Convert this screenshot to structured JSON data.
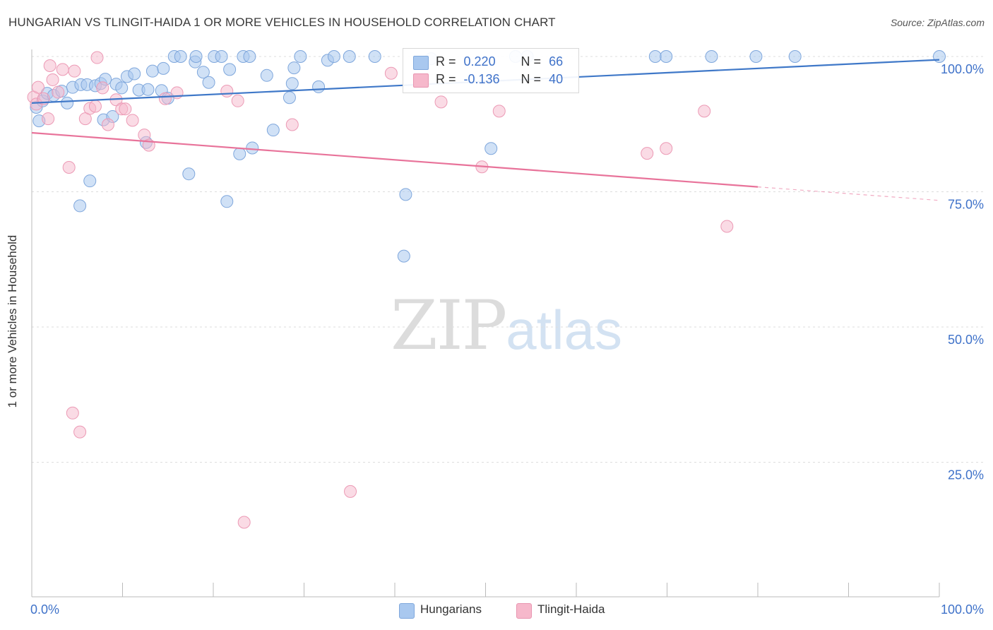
{
  "header": {
    "title": "HUNGARIAN VS TLINGIT-HAIDA 1 OR MORE VEHICLES IN HOUSEHOLD CORRELATION CHART",
    "source": "Source: ZipAtlas.com"
  },
  "watermark": {
    "zip": "ZIP",
    "atlas": "atlas"
  },
  "stats": [
    {
      "r_label": "R =",
      "r_value": "0.220",
      "n_label": "N =",
      "n_value": "66",
      "color": "#a9c8ef"
    },
    {
      "r_label": "R =",
      "r_value": "-0.136",
      "n_label": "N =",
      "n_value": "40",
      "color": "#f6b8cb"
    }
  ],
  "legend": [
    {
      "label": "Hungarians",
      "color": "#a9c8ef"
    },
    {
      "label": "Tlingit-Haida",
      "color": "#f6b8cb"
    }
  ],
  "chart_data": {
    "type": "scatter",
    "title": "HUNGARIAN VS TLINGIT-HAIDA 1 OR MORE VEHICLES IN HOUSEHOLD CORRELATION CHART",
    "xlabel": "",
    "ylabel": "1 or more Vehicles in Household",
    "xlim": [
      0,
      100
    ],
    "ylim": [
      0,
      102
    ],
    "x_tick_labels": [
      "0.0%",
      "100.0%"
    ],
    "y_ticks": [
      25,
      50,
      75,
      100
    ],
    "y_tick_labels": [
      "25.0%",
      "50.0%",
      "75.0%",
      "100.0%"
    ],
    "grid": "horizontal dashed",
    "legend_position": "bottom-center",
    "colors": {
      "Hungarians": "#3f78c8",
      "Tlingit-Haida": "#e8739a"
    },
    "series": [
      {
        "name": "Hungarians",
        "trend": {
          "x": [
            0,
            100
          ],
          "y": [
            91.4,
            99.4
          ]
        },
        "points": [
          [
            0.5,
            90.6
          ],
          [
            0.8,
            88.1
          ],
          [
            1.2,
            91.8
          ],
          [
            1.7,
            93.2
          ],
          [
            2.4,
            92.8
          ],
          [
            3.3,
            93.6
          ],
          [
            3.9,
            91.4
          ],
          [
            4.5,
            94.3
          ],
          [
            5.4,
            94.8
          ],
          [
            6.1,
            94.8
          ],
          [
            6.4,
            77.0
          ],
          [
            5.3,
            72.4
          ],
          [
            7.0,
            94.6
          ],
          [
            7.6,
            95.0
          ],
          [
            8.1,
            95.8
          ],
          [
            7.9,
            88.3
          ],
          [
            8.9,
            88.9
          ],
          [
            9.3,
            94.9
          ],
          [
            9.9,
            94.2
          ],
          [
            10.5,
            96.3
          ],
          [
            11.3,
            96.8
          ],
          [
            11.8,
            93.8
          ],
          [
            12.6,
            84.1
          ],
          [
            12.8,
            93.9
          ],
          [
            13.3,
            97.3
          ],
          [
            14.3,
            93.7
          ],
          [
            14.5,
            97.8
          ],
          [
            15.0,
            92.3
          ],
          [
            15.7,
            100.0
          ],
          [
            16.4,
            100.0
          ],
          [
            17.3,
            78.3
          ],
          [
            18.0,
            99.0
          ],
          [
            18.1,
            100.0
          ],
          [
            18.9,
            97.1
          ],
          [
            19.5,
            95.2
          ],
          [
            20.1,
            100.0
          ],
          [
            20.9,
            100.0
          ],
          [
            21.5,
            73.2
          ],
          [
            21.8,
            97.6
          ],
          [
            22.9,
            82.0
          ],
          [
            23.3,
            100.0
          ],
          [
            24.0,
            100.0
          ],
          [
            24.3,
            83.1
          ],
          [
            25.9,
            96.5
          ],
          [
            26.6,
            86.4
          ],
          [
            28.4,
            92.4
          ],
          [
            28.7,
            95.0
          ],
          [
            28.9,
            97.9
          ],
          [
            29.6,
            100.0
          ],
          [
            31.6,
            94.4
          ],
          [
            32.6,
            99.3
          ],
          [
            33.3,
            100.0
          ],
          [
            35.0,
            100.0
          ],
          [
            37.8,
            100.0
          ],
          [
            41.0,
            63.1
          ],
          [
            41.2,
            74.5
          ],
          [
            44.0,
            99.6
          ],
          [
            50.6,
            83.0
          ],
          [
            53.3,
            100.0
          ],
          [
            54.6,
            100.0
          ],
          [
            68.7,
            100.0
          ],
          [
            69.9,
            100.0
          ],
          [
            74.9,
            100.0
          ],
          [
            79.8,
            100.0
          ],
          [
            84.1,
            100.0
          ],
          [
            100.0,
            100.0
          ]
        ]
      },
      {
        "name": "Tlingit-Haida",
        "trend": {
          "x": [
            0,
            80
          ],
          "y": [
            85.9,
            75.9
          ],
          "dashed_to": [
            100,
            73.4
          ]
        },
        "points": [
          [
            0.2,
            92.5
          ],
          [
            0.5,
            91.2
          ],
          [
            0.7,
            94.3
          ],
          [
            1.3,
            92.2
          ],
          [
            1.8,
            88.5
          ],
          [
            2.0,
            98.3
          ],
          [
            2.3,
            95.7
          ],
          [
            2.9,
            93.4
          ],
          [
            3.4,
            97.6
          ],
          [
            4.1,
            79.5
          ],
          [
            4.5,
            34.1
          ],
          [
            4.7,
            97.3
          ],
          [
            5.3,
            30.6
          ],
          [
            5.9,
            88.5
          ],
          [
            6.4,
            90.4
          ],
          [
            7.0,
            90.8
          ],
          [
            7.2,
            99.8
          ],
          [
            7.8,
            94.2
          ],
          [
            8.4,
            87.4
          ],
          [
            9.3,
            92.0
          ],
          [
            9.9,
            90.3
          ],
          [
            10.3,
            90.3
          ],
          [
            11.1,
            88.2
          ],
          [
            12.4,
            85.5
          ],
          [
            12.9,
            83.6
          ],
          [
            14.7,
            92.2
          ],
          [
            16.0,
            93.3
          ],
          [
            21.5,
            93.6
          ],
          [
            22.7,
            91.8
          ],
          [
            23.4,
            13.9
          ],
          [
            28.7,
            87.4
          ],
          [
            35.1,
            19.6
          ],
          [
            39.6,
            96.9
          ],
          [
            45.1,
            91.6
          ],
          [
            49.6,
            79.6
          ],
          [
            51.5,
            89.9
          ],
          [
            67.8,
            82.1
          ],
          [
            69.9,
            83.0
          ],
          [
            74.1,
            89.9
          ],
          [
            76.6,
            68.6
          ]
        ]
      }
    ]
  }
}
